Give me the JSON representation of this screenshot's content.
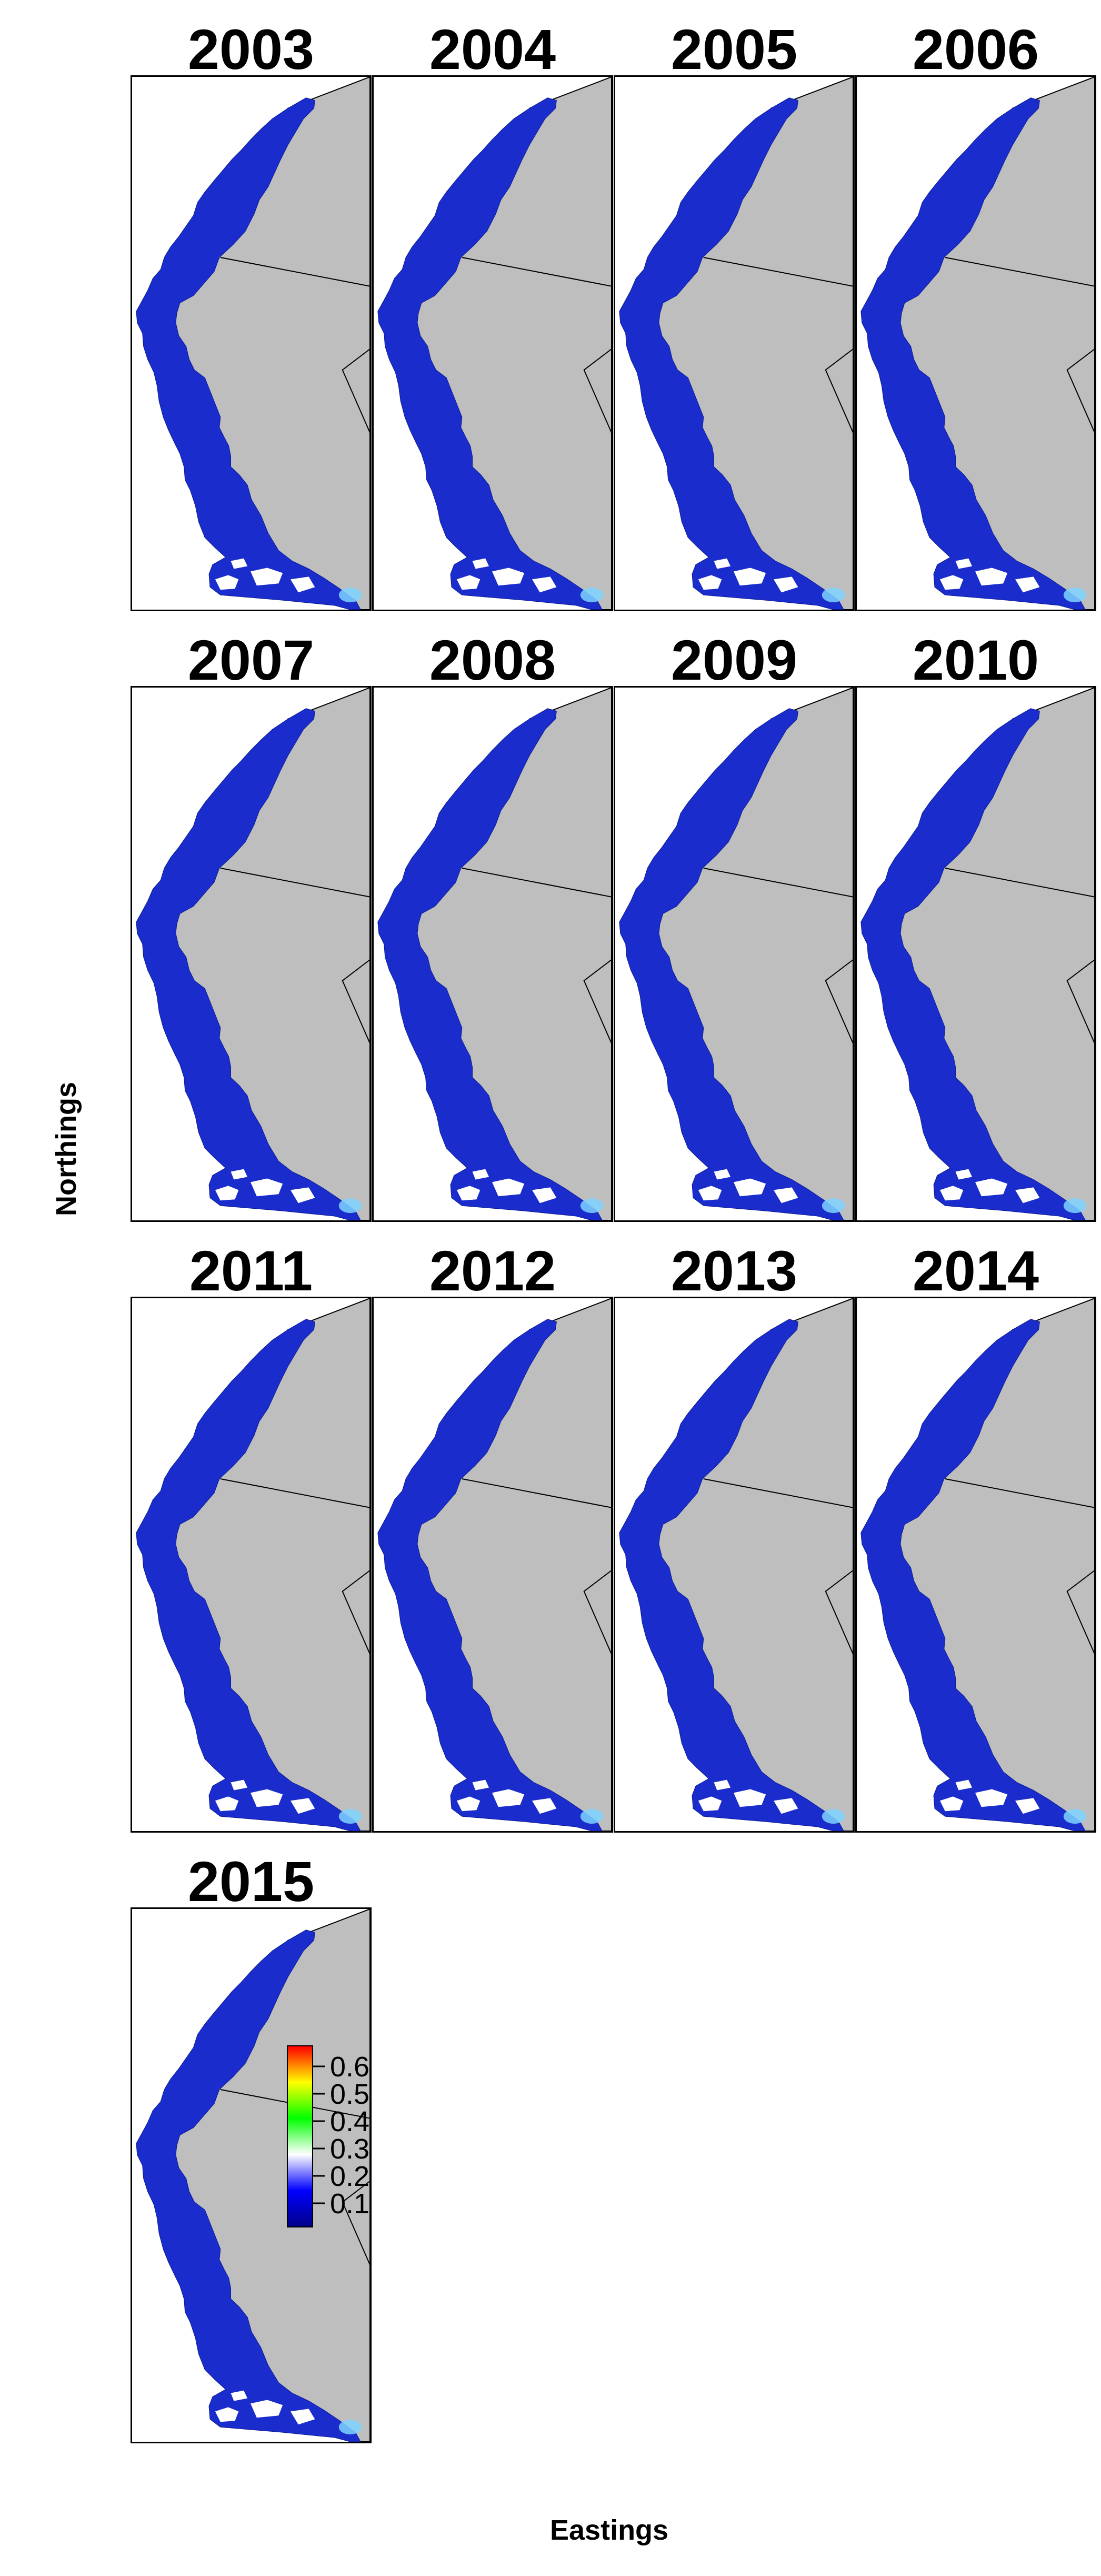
{
  "figure": {
    "xlabel": "Eastings",
    "ylabel": "Northings"
  },
  "panels": [
    {
      "year": "2003"
    },
    {
      "year": "2004"
    },
    {
      "year": "2005"
    },
    {
      "year": "2006"
    },
    {
      "year": "2007"
    },
    {
      "year": "2008"
    },
    {
      "year": "2009"
    },
    {
      "year": "2010"
    },
    {
      "year": "2011"
    },
    {
      "year": "2012"
    },
    {
      "year": "2013"
    },
    {
      "year": "2014"
    },
    {
      "year": "2015"
    }
  ],
  "legend": {
    "ticks": [
      "0.6",
      "0.5",
      "0.4",
      "0.3",
      "0.2",
      "0.1"
    ],
    "colors": [
      "#00008b",
      "#0000ff",
      "#ffffff",
      "#00ff00",
      "#ffff00",
      "#ff0000"
    ]
  },
  "map_style": {
    "ocean_color": "#ffffff",
    "land_color": "#bebebe",
    "domain_color": "#1a2ccc"
  }
}
